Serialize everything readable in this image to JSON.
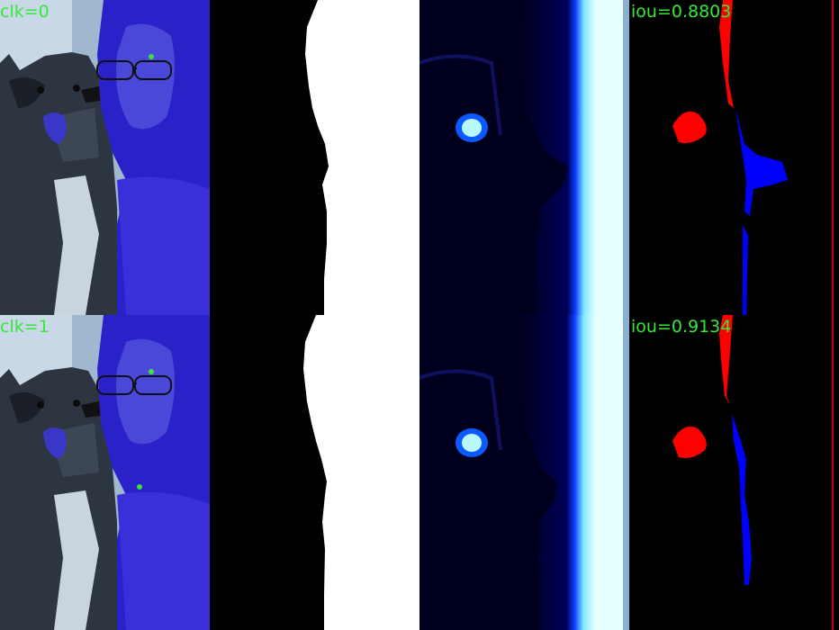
{
  "rows": [
    {
      "click_label": "clk=0",
      "iou_label": "iou=0.8803",
      "click_count": 1
    },
    {
      "click_label": "clk=1",
      "iou_label": "iou=0.9134",
      "click_count": 2
    }
  ],
  "colors": {
    "label_text": "#35e83a",
    "click_point": "#3fe03f",
    "overlay": "#2a22c8",
    "mask_fg": "#ffffff",
    "mask_bg": "#000000",
    "prob_high": "#e6ffff",
    "prob_low": "#000033",
    "false_positive": "#ff0000",
    "false_negative": "#0000ff"
  },
  "icons": {
    "click_point": "green-dot-icon"
  }
}
